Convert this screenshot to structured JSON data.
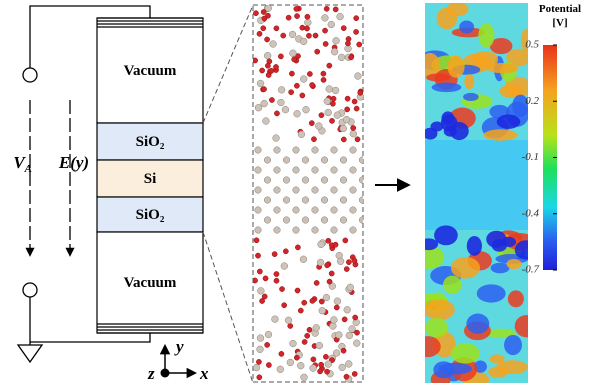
{
  "layers": [
    "Vacuum",
    "SiO₂",
    "Si",
    "SiO₂",
    "Vacuum"
  ],
  "voltage": {
    "symbol": "V",
    "subscript": "A"
  },
  "field": "E(y)",
  "axes": {
    "y": "y",
    "x": "x",
    "z": "z"
  },
  "colorbar": {
    "title": "Potential",
    "unit": "[V]",
    "lim": [
      -0.7,
      0.5
    ],
    "ticks": [
      0.5,
      0.2,
      -0.1,
      -0.4,
      -0.7
    ]
  }
}
